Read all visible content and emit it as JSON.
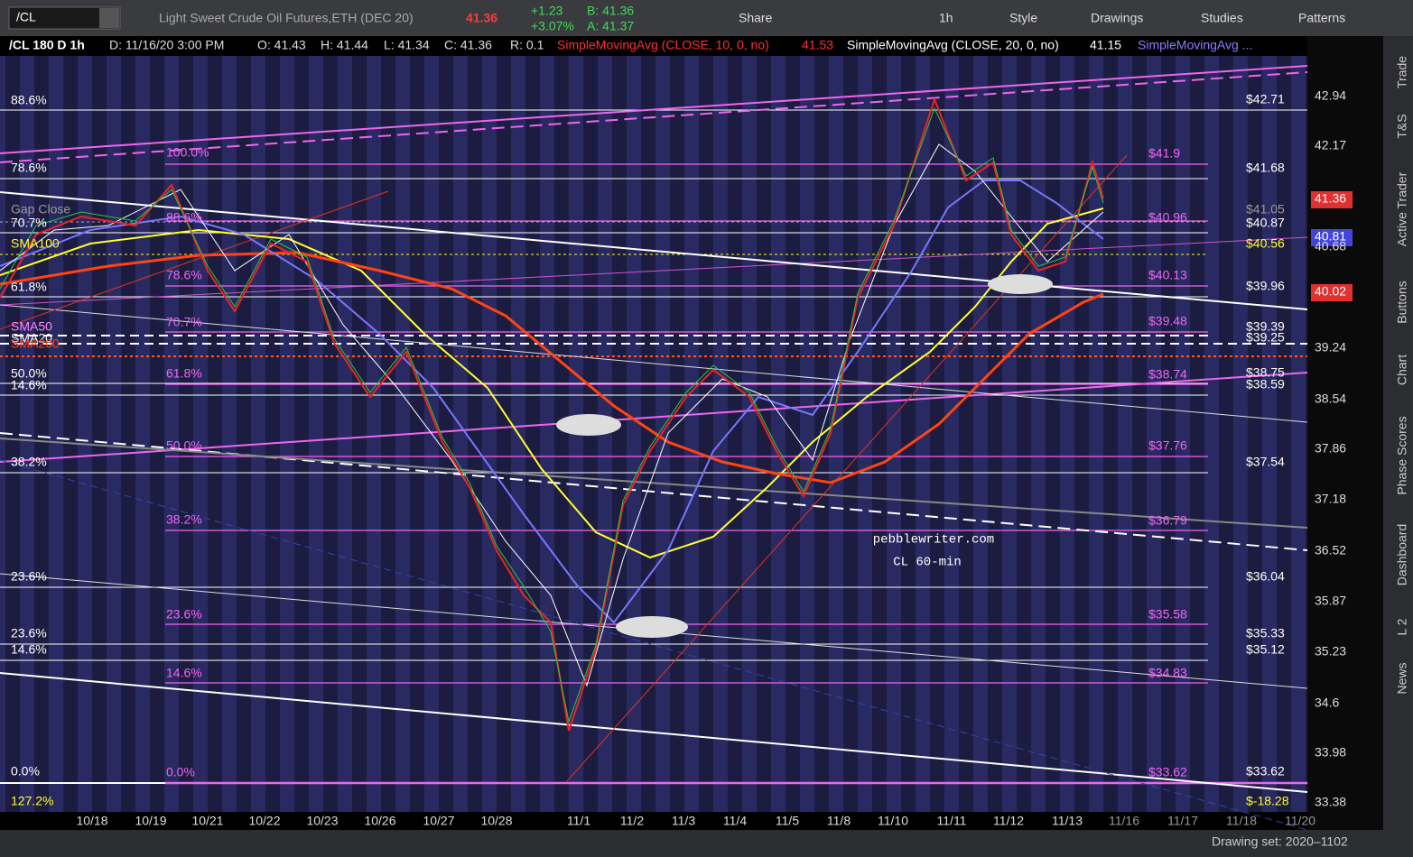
{
  "toolbar": {
    "symbol": "/CL",
    "description": "Light Sweet Crude Oil Futures,ETH (DEC 20)",
    "last": "41.36",
    "change": "+1.23",
    "change_pct": "+3.07%",
    "bid": "B: 41.36",
    "ask": "A: 41.37",
    "buttons": [
      "Share",
      "1h",
      "Style",
      "Drawings",
      "Studies",
      "Patterns"
    ]
  },
  "chart_header": {
    "symbol": "/CL 180 D 1h",
    "date": "D: 11/16/20 3:00 PM",
    "open": "O: 41.43",
    "high": "H: 41.44",
    "low": "L: 41.34",
    "close": "C: 41.36",
    "range": "R: 0.1",
    "study1": "SimpleMovingAvg (CLOSE, 10, 0, no)",
    "study1_value": "41.53",
    "study2": "SimpleMovingAvg (CLOSE, 20, 0, no)",
    "study2_value": "41.15",
    "study3": "SimpleMovingAvg ..."
  },
  "price_axis": [
    "42.94",
    "42.17",
    "40.68",
    "39.24",
    "38.54",
    "37.86",
    "37.18",
    "36.52",
    "35.87",
    "35.23",
    "34.6",
    "33.98",
    "33.38"
  ],
  "price_bubbles": [
    "41.36",
    "40.81",
    "40.02"
  ],
  "date_axis": [
    "10/18",
    "10/19",
    "10/21",
    "10/22",
    "10/23",
    "10/26",
    "10/27",
    "10/28",
    "11/1",
    "11/2",
    "11/3",
    "11/4",
    "11/5",
    "11/8",
    "11/10",
    "11/11",
    "11/12",
    "11/13",
    "11/16",
    "11/17",
    "11/18",
    "11/20"
  ],
  "left_labels": [
    "88.6%",
    "78.6%",
    "70.7%",
    "61.8%",
    "50.0%",
    "14.6%",
    "38.2%",
    "23.6%",
    "23.6%",
    "14.6%",
    "0.0%",
    "127.2%"
  ],
  "study_labels": [
    "Gap Close",
    "SMA100",
    "SMA50",
    "SMA20",
    "SMA200"
  ],
  "fib_labels": [
    "100.0%",
    "88.6%",
    "78.6%",
    "70.7%",
    "61.8%",
    "50.0%",
    "38.2%",
    "23.6%",
    "14.6%",
    "0.0%"
  ],
  "fib_prices": [
    "$41.9",
    "$40.96",
    "$40.13",
    "$39.48",
    "$38.74",
    "$37.76",
    "$36.79",
    "$35.58",
    "$34.83",
    "$33.62"
  ],
  "level_prices": [
    "$42.71",
    "$41.68",
    "$41.05",
    "$40.87",
    "$40.56",
    "$39.96",
    "$39.39",
    "$39.25",
    "$38.75",
    "$38.59",
    "$37.54",
    "$36.04",
    "$35.33",
    "$35.12",
    "$33.62",
    "$-18.28"
  ],
  "watermark": [
    "pebblewriter.com",
    "CL 60-min"
  ],
  "sidebar": [
    "Trade",
    "T&S",
    "Active Trader",
    "Buttons",
    "Chart",
    "Phase Scores",
    "Dashboard",
    "L 2",
    "News"
  ],
  "footer": "Drawing set: 2020–1102"
}
